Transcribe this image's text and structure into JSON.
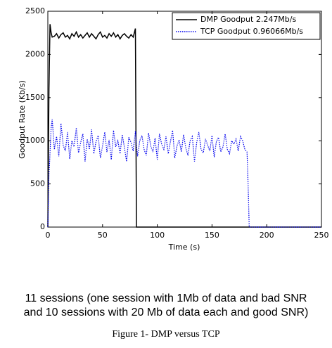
{
  "chart_data": {
    "type": "line",
    "x_label": "Time (s)",
    "y_label": "Goodput Rate (Kb/s)",
    "x": [
      0,
      1,
      2,
      3,
      4,
      6,
      8,
      10,
      12,
      14,
      16,
      18,
      20,
      22,
      24,
      26,
      28,
      30,
      32,
      34,
      36,
      38,
      40,
      42,
      44,
      46,
      48,
      50,
      52,
      54,
      56,
      58,
      60,
      62,
      64,
      66,
      68,
      70,
      72,
      74,
      76,
      78,
      80,
      81,
      82,
      84,
      86,
      88,
      90,
      92,
      94,
      96,
      98,
      100,
      102,
      104,
      106,
      108,
      110,
      112,
      114,
      116,
      118,
      120,
      122,
      124,
      126,
      128,
      130,
      132,
      134,
      136,
      138,
      140,
      142,
      144,
      146,
      148,
      150,
      152,
      154,
      156,
      158,
      160,
      162,
      164,
      166,
      168,
      170,
      172,
      174,
      176,
      178,
      180,
      182,
      183,
      184,
      186,
      200,
      220,
      250
    ],
    "series": [
      {
        "name": "DMP Goodput 2.247Mb/s",
        "color": "#000000",
        "style": "solid",
        "values": [
          0,
          1600,
          2350,
          2250,
          2200,
          2210,
          2240,
          2190,
          2230,
          2250,
          2200,
          2220,
          2180,
          2240,
          2210,
          2260,
          2200,
          2230,
          2190,
          2220,
          2250,
          2200,
          2240,
          2210,
          2180,
          2230,
          2260,
          2200,
          2220,
          2190,
          2240,
          2210,
          2250,
          2200,
          2230,
          2180,
          2220,
          2240,
          2210,
          2190,
          2230,
          2200,
          2300,
          0,
          0,
          0,
          0,
          0,
          0,
          0,
          0,
          0,
          0,
          0,
          0,
          0,
          0,
          0,
          0,
          0,
          0,
          0,
          0,
          0,
          0,
          0,
          0,
          0,
          0,
          0,
          0,
          0,
          0,
          0,
          0,
          0,
          0,
          0,
          0,
          0,
          0,
          0,
          0,
          0,
          0,
          0,
          0,
          0,
          0,
          0,
          0,
          0,
          0,
          0,
          0,
          0,
          0,
          0,
          0,
          0,
          0
        ]
      },
      {
        "name": "TCP Goodput 0.96066Mb/s",
        "color": "#0000ee",
        "style": "dotted",
        "values": [
          0,
          600,
          850,
          1150,
          1250,
          900,
          1050,
          820,
          1200,
          950,
          880,
          1100,
          790,
          1000,
          930,
          1150,
          860,
          980,
          1080,
          760,
          1020,
          900,
          1130,
          850,
          990,
          1060,
          800,
          940,
          1100,
          870,
          1010,
          780,
          1120,
          930,
          1000,
          850,
          1070,
          920,
          760,
          1040,
          980,
          880,
          1110,
          950,
          820,
          1000,
          1060,
          900,
          830,
          1090,
          940,
          870,
          1030,
          780,
          1080,
          960,
          900,
          1050,
          850,
          990,
          1120,
          800,
          940,
          1010,
          870,
          1070,
          920,
          830,
          1000,
          1050,
          760,
          980,
          1100,
          900,
          860,
          1020,
          950,
          880,
          1060,
          810,
          990,
          1040,
          870,
          930,
          1080,
          900,
          850,
          1000,
          960,
          1020,
          880,
          1050,
          1000,
          900,
          870,
          500,
          0,
          0,
          0,
          0,
          0
        ]
      }
    ],
    "xlim": [
      0,
      250
    ],
    "xticks": [
      0,
      50,
      100,
      150,
      200,
      250
    ],
    "ylim": [
      0,
      2500
    ],
    "yticks": [
      0,
      500,
      1000,
      1500,
      2000,
      2500
    ],
    "grid": false,
    "legend": "upper right"
  },
  "caption_lines": [
    "11 sessions (one session with 1Mb of data and bad SNR",
    "and 10 sessions with 20 Mb of data each and good SNR)"
  ],
  "figure_label": "Figure 1- DMP versus TCP"
}
